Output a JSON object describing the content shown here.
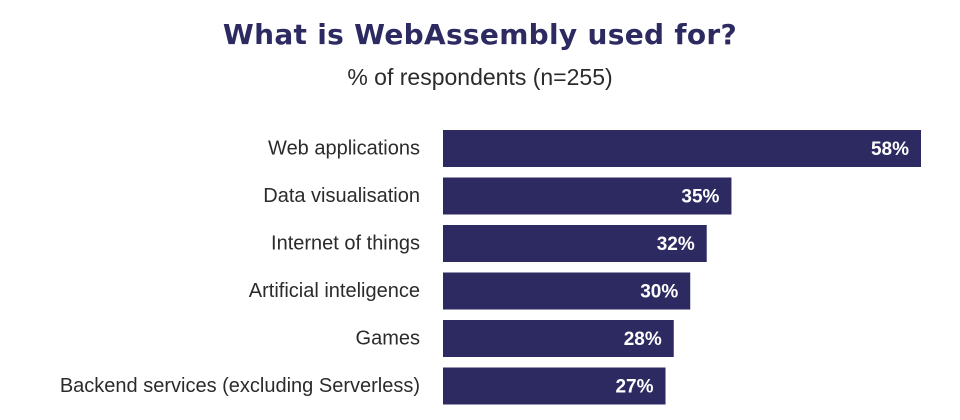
{
  "colors": {
    "bar": "#2c2a61",
    "title": "#2c2a61",
    "value_text": "#ffffff",
    "label_text": "#2b2b2b"
  },
  "chart_data": {
    "type": "bar",
    "orientation": "horizontal",
    "title": "What is WebAssembly used for?",
    "subtitle": "% of respondents (n=255)",
    "categories": [
      "Web applications",
      "Data visualisation",
      "Internet of things",
      "Artificial inteligence",
      "Games",
      "Backend services (excluding Serverless)"
    ],
    "values": [
      58,
      35,
      32,
      30,
      28,
      27
    ],
    "value_labels": [
      "58%",
      "35%",
      "32%",
      "30%",
      "28%",
      "27%"
    ],
    "xlabel": "",
    "ylabel": "",
    "xlim": [
      0,
      58
    ],
    "grid": false,
    "legend": "none"
  }
}
